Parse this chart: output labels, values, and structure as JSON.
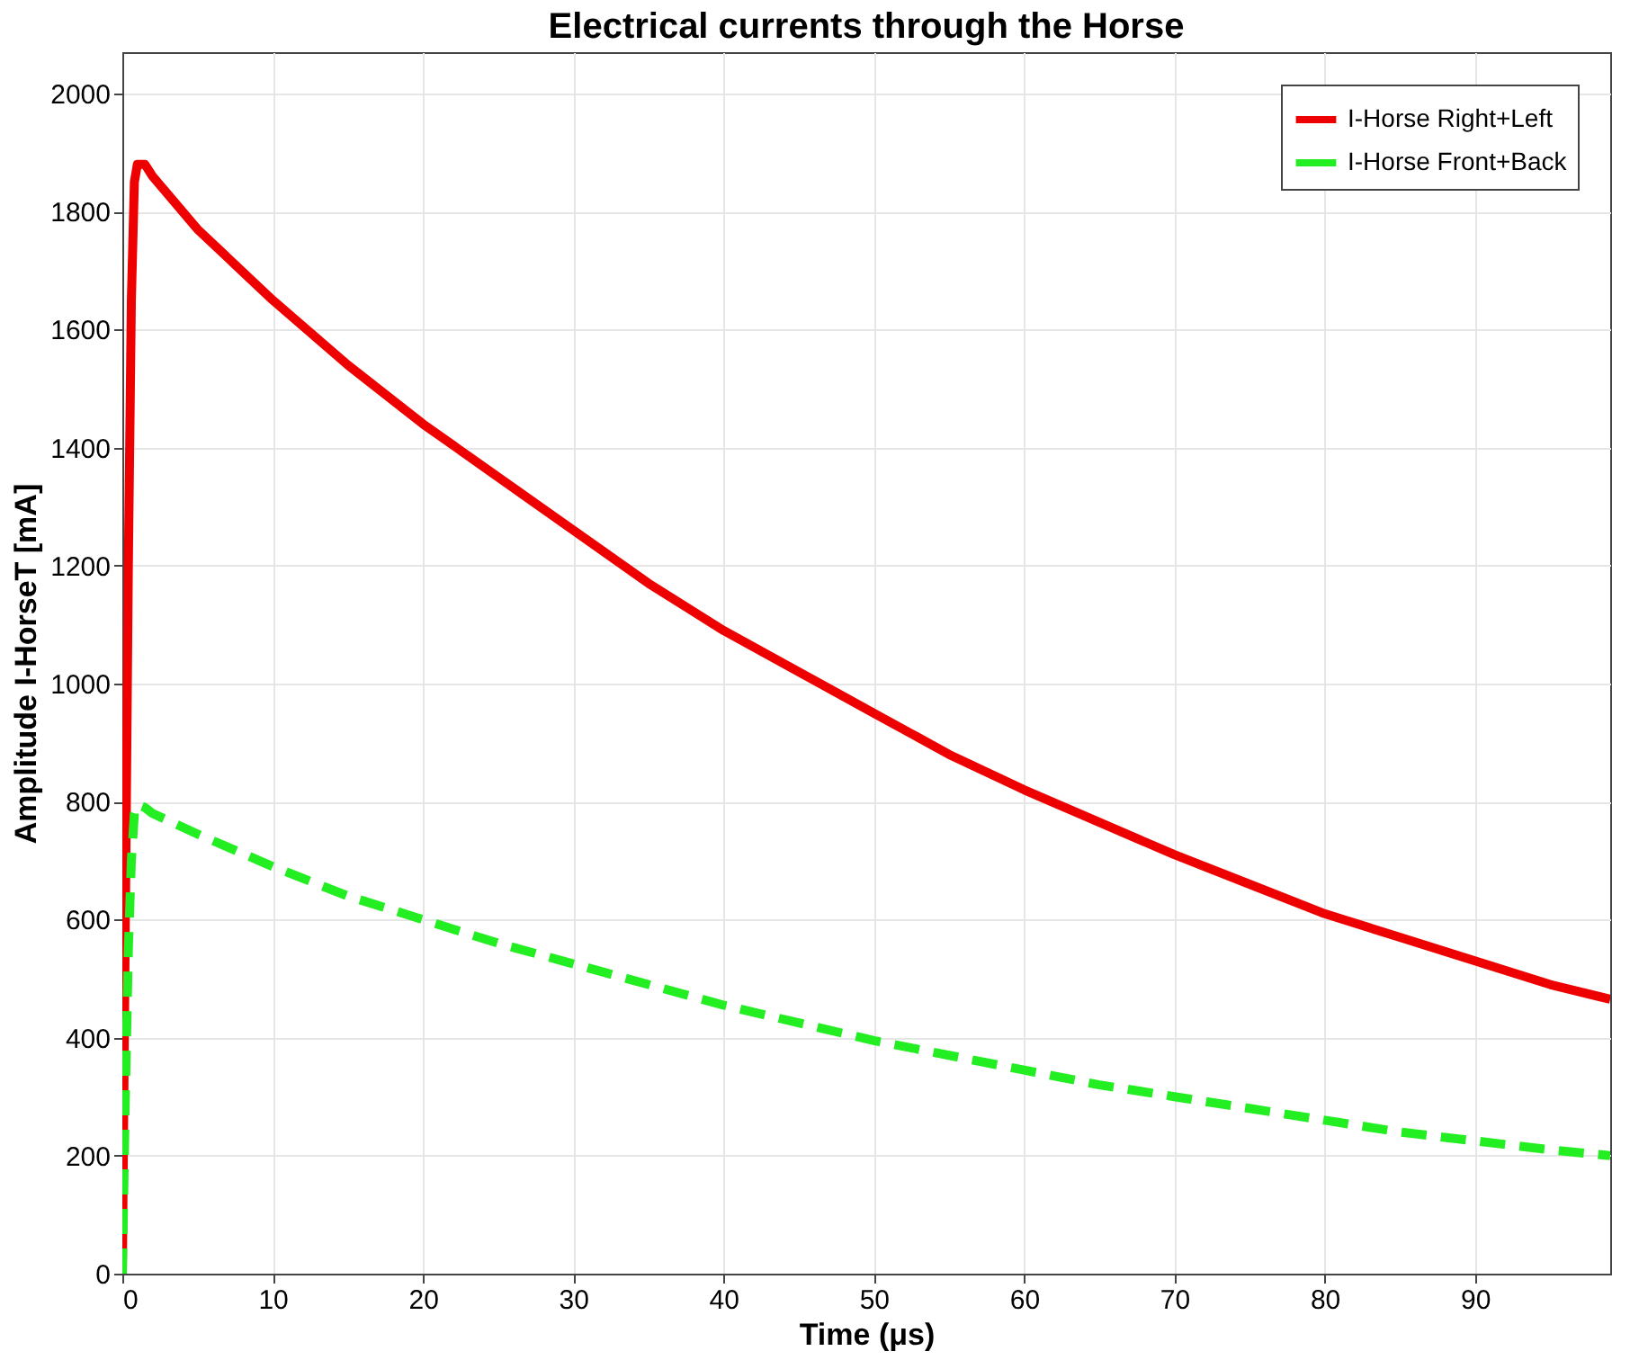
{
  "chart_data": {
    "type": "line",
    "title": "Electrical currents through the Horse",
    "xlabel": "Time (μs)",
    "ylabel": "Amplitude I-HorseT [mA]",
    "xlim": [
      0,
      99
    ],
    "ylim": [
      0,
      2070
    ],
    "xticks": [
      0,
      10,
      20,
      30,
      40,
      50,
      60,
      70,
      80,
      90
    ],
    "yticks": [
      0,
      200,
      400,
      600,
      800,
      1000,
      1200,
      1400,
      1600,
      1800,
      2000
    ],
    "grid": true,
    "legend": "top right",
    "series": [
      {
        "name": "I-Horse Right+Left",
        "color": "#ee0000",
        "line_style": "solid",
        "x": [
          0,
          0.2,
          0.4,
          0.6,
          0.8,
          1.0,
          1.5,
          2,
          5,
          10,
          15,
          20,
          25,
          30,
          35,
          40,
          45,
          50,
          55,
          60,
          65,
          70,
          75,
          80,
          85,
          90,
          95,
          99
        ],
        "values": [
          0,
          600,
          1200,
          1650,
          1850,
          1880,
          1880,
          1860,
          1770,
          1650,
          1540,
          1440,
          1350,
          1260,
          1170,
          1090,
          1020,
          950,
          880,
          820,
          765,
          710,
          660,
          610,
          570,
          530,
          490,
          465
        ]
      },
      {
        "name": "I-Horse Front+Back",
        "color": "#22ee22",
        "line_style": "dashed",
        "x": [
          0,
          0.2,
          0.4,
          0.6,
          0.8,
          1.0,
          1.5,
          2,
          5,
          10,
          15,
          20,
          25,
          30,
          35,
          40,
          45,
          50,
          55,
          60,
          65,
          70,
          75,
          80,
          85,
          90,
          95,
          99
        ],
        "values": [
          0,
          300,
          550,
          700,
          780,
          795,
          790,
          780,
          745,
          690,
          640,
          600,
          560,
          525,
          490,
          455,
          425,
          395,
          370,
          345,
          320,
          300,
          280,
          260,
          240,
          225,
          210,
          200
        ]
      }
    ]
  }
}
